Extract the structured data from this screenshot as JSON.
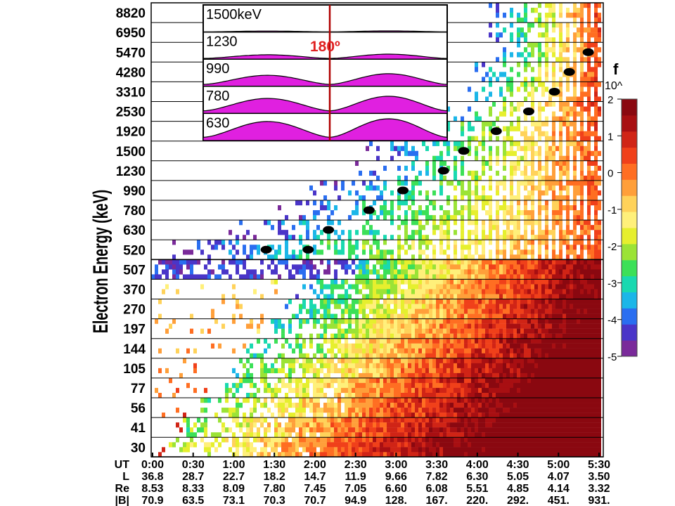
{
  "chart_data": {
    "type": "heatmap",
    "title": "",
    "ylabel": "Electron Energy (keV)",
    "energy_channels_keV": [
      "8820",
      "6950",
      "5470",
      "4280",
      "3310",
      "2530",
      "1920",
      "1500",
      "1230",
      "990",
      "780",
      "630",
      "520",
      "507",
      "370",
      "270",
      "197",
      "144",
      "105",
      "77",
      "56",
      "41",
      "30"
    ],
    "x_ticks_UT": [
      "0:00",
      "0:30",
      "1:00",
      "1:30",
      "2:00",
      "2:30",
      "3:00",
      "3:30",
      "4:00",
      "4:30",
      "5:00",
      "5:30"
    ],
    "ephemeris": [
      {
        "label": "UT",
        "values": [
          "0:00",
          "0:30",
          "1:00",
          "1:30",
          "2:00",
          "2:30",
          "3:00",
          "3:30",
          "4:00",
          "4:30",
          "5:00",
          "5:30"
        ]
      },
      {
        "label": "L",
        "values": [
          "36.8",
          "28.7",
          "22.7",
          "18.2",
          "14.7",
          "11.9",
          "9.66",
          "7.82",
          "6.30",
          "5.05",
          "4.07",
          "3.50"
        ]
      },
      {
        "label": "Re",
        "values": [
          "8.53",
          "8.33",
          "8.09",
          "7.80",
          "7.45",
          "7.05",
          "6.60",
          "6.08",
          "5.51",
          "4.85",
          "4.14",
          "3.32"
        ]
      },
      {
        "label": "|B|",
        "values": [
          "70.9",
          "63.5",
          "73.1",
          "70.3",
          "70.7",
          "94.9",
          "128.",
          "167.",
          "220.",
          "292.",
          "451.",
          "931."
        ]
      }
    ],
    "colorbar": {
      "label": "f",
      "exponent_label": "10^",
      "ticks": [
        "2",
        "1",
        "0",
        "-1",
        "-2",
        "-3",
        "-4",
        "-5"
      ],
      "range": [
        -5,
        2
      ],
      "colors": [
        "#7a2a9a",
        "#4a35c8",
        "#2a6ef0",
        "#1bb6e8",
        "#19d9b0",
        "#3ce058",
        "#9be336",
        "#e6ef2e",
        "#fff07a",
        "#ffd25a",
        "#ff9f3a",
        "#ff6e22",
        "#f0401a",
        "#d02416",
        "#a80f12",
        "#8a0810"
      ]
    },
    "onset_markers": [
      {
        "time_UT": "1:24",
        "energy_keV": "520"
      },
      {
        "time_UT": "1:55",
        "energy_keV": "520"
      },
      {
        "time_UT": "2:10",
        "energy_keV": "630"
      },
      {
        "time_UT": "2:40",
        "energy_keV": "780"
      },
      {
        "time_UT": "3:05",
        "energy_keV": "990"
      },
      {
        "time_UT": "3:35",
        "energy_keV": "1230"
      },
      {
        "time_UT": "3:50",
        "energy_keV": "1500"
      },
      {
        "time_UT": "4:14",
        "energy_keV": "1920"
      },
      {
        "time_UT": "4:38",
        "energy_keV": "2530"
      },
      {
        "time_UT": "4:57",
        "energy_keV": "3310"
      },
      {
        "time_UT": "5:08",
        "energy_keV": "4280"
      },
      {
        "time_UT": "5:22",
        "energy_keV": "5470"
      }
    ],
    "inset": {
      "angle_label": "180º",
      "channels": [
        {
          "label": "1500keV",
          "amplitude": 0.05
        },
        {
          "label": "1230",
          "amplitude": 0.22
        },
        {
          "label": "990",
          "amplitude": 0.55
        },
        {
          "label": "780",
          "amplitude": 0.75
        },
        {
          "label": "630",
          "amplitude": 0.95
        }
      ]
    }
  }
}
